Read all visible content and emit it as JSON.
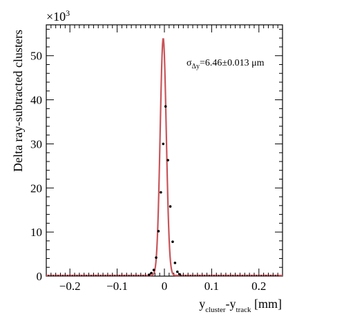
{
  "chart_data": {
    "type": "scatter",
    "title": "",
    "xlabel": {
      "main": "y",
      "sub1": "cluster",
      "mid": "-y",
      "sub2": "track",
      "unit": " [mm]"
    },
    "ylabel": "Delta ray-subtracted clusters",
    "y_multiplier": {
      "base": "×10",
      "exp": "3"
    },
    "xlim": [
      -0.25,
      0.25
    ],
    "ylim": [
      0,
      57
    ],
    "x_ticks": [
      -0.2,
      -0.1,
      0,
      0.1,
      0.2
    ],
    "x_tick_labels": [
      "−0.2",
      "−0.1",
      "0",
      "0.1",
      "0.2"
    ],
    "y_ticks": [
      0,
      10,
      20,
      30,
      40,
      50
    ],
    "y_tick_labels": [
      "0",
      "10",
      "20",
      "30",
      "40",
      "50"
    ],
    "grid": false,
    "annotation": {
      "sigma": "σ",
      "sub": "Δy",
      "text": "=6.46±0.013 μm"
    },
    "series": [
      {
        "kind": "points",
        "color": "#000000",
        "x": [
          -0.0325,
          -0.0275,
          -0.0225,
          -0.0175,
          -0.0125,
          -0.0075,
          -0.0025,
          0.0025,
          0.0075,
          0.0125,
          0.0175,
          0.0225,
          0.0275,
          0.0325
        ],
        "y": [
          0.3,
          0.7,
          1.4,
          4.2,
          10.2,
          19.0,
          30.0,
          38.5,
          26.3,
          15.8,
          7.8,
          3.0,
          1.0,
          0.4
        ]
      },
      {
        "kind": "fit",
        "color": "#c8555a",
        "model": "gaussian",
        "amplitude": 53.8,
        "mean": -0.0025,
        "sigma": 0.00646,
        "baseline": 0.15
      }
    ]
  }
}
